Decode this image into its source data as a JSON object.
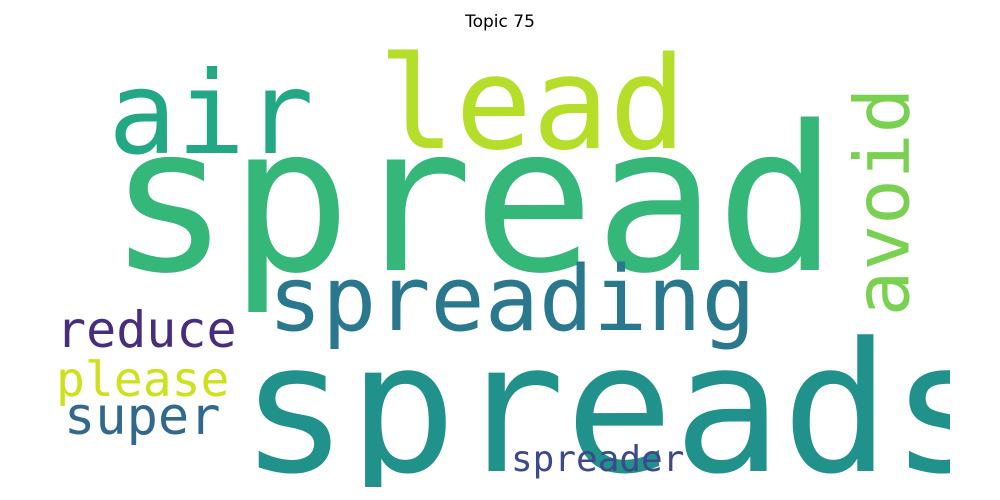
{
  "title": "Topic 75",
  "words": [
    {
      "text": "spread",
      "color": "#35b779",
      "rank": 1
    },
    {
      "text": "spreads",
      "color": "#21918c",
      "rank": 2
    },
    {
      "text": "spreading",
      "color": "#2a788e",
      "rank": 3
    },
    {
      "text": "air",
      "color": "#22a884",
      "rank": 4
    },
    {
      "text": "lead",
      "color": "#b5de2b",
      "rank": 5
    },
    {
      "text": "avoid",
      "color": "#7ad151",
      "rank": 6
    },
    {
      "text": "reduce",
      "color": "#472d7b",
      "rank": 7
    },
    {
      "text": "please",
      "color": "#cde11d",
      "rank": 8
    },
    {
      "text": "super",
      "color": "#31688e",
      "rank": 9
    },
    {
      "text": "spreader",
      "color": "#3e4989",
      "rank": 10
    }
  ]
}
